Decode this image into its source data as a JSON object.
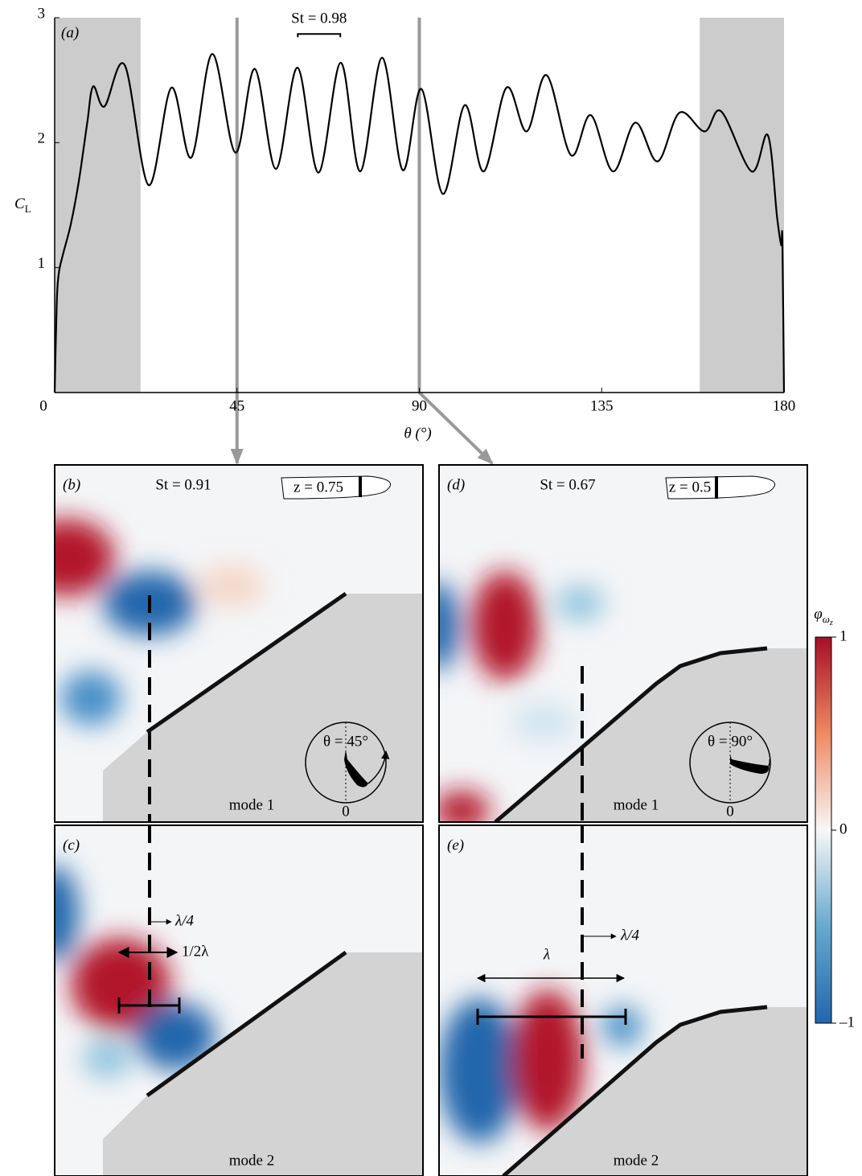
{
  "chart_data": {
    "type": "line",
    "panel_label": "(a)",
    "ylabel": [
      "C",
      "L"
    ],
    "xlabel": "θ (°)",
    "x": [
      0,
      0.5,
      1,
      2,
      4,
      6,
      8,
      9.5,
      12.3,
      17.3,
      23.2,
      28.8,
      33.7,
      38.9,
      44.6,
      49.4,
      54.6,
      59.9,
      65.1,
      70.6,
      75.4,
      80.8,
      85.9,
      90.5,
      95.8,
      101.2,
      105.9,
      111.5,
      116.5,
      121.4,
      127.4,
      132.3,
      137.8,
      143.3,
      148.8,
      154.2,
      160.4,
      164.5,
      172,
      176,
      178.3,
      179.3,
      179.6,
      180
    ],
    "values": [
      0,
      0.7,
      0.95,
      1.1,
      1.35,
      1.7,
      2.15,
      2.45,
      2.29,
      2.62,
      1.66,
      2.44,
      1.88,
      2.71,
      1.92,
      2.59,
      1.79,
      2.6,
      1.76,
      2.64,
      1.77,
      2.68,
      1.78,
      2.43,
      1.59,
      2.3,
      1.77,
      2.44,
      2.09,
      2.54,
      1.9,
      2.22,
      1.77,
      2.16,
      1.85,
      2.24,
      2.09,
      2.25,
      1.77,
      2.06,
      1.4,
      1.18,
      1.22,
      0
    ],
    "color": "#000000",
    "xlim": [
      0,
      180
    ],
    "ylim": [
      0,
      3
    ],
    "xticks": [
      0,
      45,
      90,
      135,
      180
    ],
    "yticks": [
      1,
      2,
      3
    ],
    "shaded_ranges": [
      [
        0,
        21.2
      ],
      [
        159.2,
        180
      ]
    ],
    "shade_color": "#cccccc",
    "vlines": [
      45,
      90
    ],
    "vline_color": "#999999",
    "annotations": [
      {
        "text": "St = 0.98",
        "x": [
          60,
          70.5
        ],
        "y": 2.87
      }
    ]
  },
  "panels": [
    {
      "label": "(b)",
      "st": "St = 0.91",
      "z": "z = 0.75",
      "theta": "θ = 45°",
      "zero": "0",
      "mode": "mode 1"
    },
    {
      "label": "(c)",
      "mode": "mode 2",
      "quarter": "λ/4",
      "half": "1/2λ"
    },
    {
      "label": "(d)",
      "st": "St = 0.67",
      "z": "z = 0.5",
      "theta": "θ = 90°",
      "zero": "0",
      "mode": "mode 1"
    },
    {
      "label": "(e)",
      "mode": "mode 2",
      "quarter": "λ/4",
      "full": "λ"
    }
  ],
  "colorbar": {
    "symbol": "φ",
    "sub": "ω",
    "subsub": "z",
    "lim": [
      -1,
      1
    ],
    "ticks": [
      1,
      0,
      {
        "value": -1,
        "label": "–1"
      }
    ]
  }
}
